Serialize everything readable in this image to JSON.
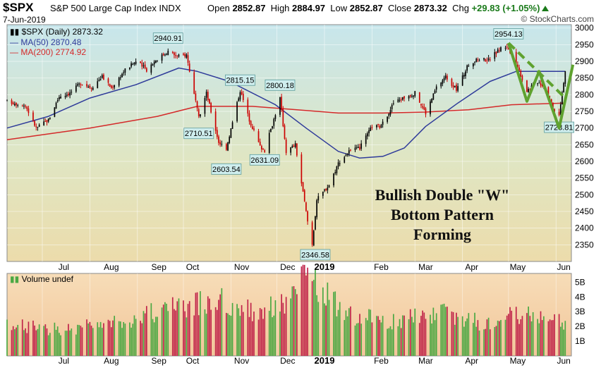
{
  "header": {
    "symbol": "$SPX",
    "description": "S&P 500 Large Cap Index  INDX",
    "date": "7-Jun-2019",
    "open_label": "Open",
    "open": "2852.87",
    "high_label": "High",
    "high": "2884.97",
    "low_label": "Low",
    "low": "2852.87",
    "close_label": "Close",
    "close": "2873.32",
    "chg_label": "Chg",
    "chg": "+29.83 (+1.05%)",
    "credit": "© StockCharts.com"
  },
  "legend": {
    "price": "$SPX (Daily) 2873.32",
    "ma50": "MA(50) 2870.48",
    "ma200": "MA(200) 2774.92",
    "volume": "Volume undef"
  },
  "annotation": {
    "line1": "Bullish Double \"W\"",
    "line2": "Bottom Pattern",
    "line3": "Forming"
  },
  "colors": {
    "up": "#000000",
    "down": "#cc0000",
    "ma50": "#2f3b9a",
    "ma200": "#d42a2a",
    "pattern": "#5fa22f",
    "vol_up": "#4aa843",
    "vol_down": "#c0244a",
    "callout_bg": "#cfeeee",
    "callout_border": "#5c9a9a"
  },
  "chart_data": {
    "type": "candlestick",
    "title": "$SPX S&P 500 Large Cap Index INDX",
    "x_axis_ticks": [
      "Jul",
      "Aug",
      "Sep",
      "Oct",
      "Nov",
      "Dec",
      "2019",
      "Feb",
      "Mar",
      "Apr",
      "May",
      "Jun"
    ],
    "y_axis_ticks": [
      2350,
      2400,
      2450,
      2500,
      2550,
      2600,
      2650,
      2700,
      2750,
      2800,
      2850,
      2900,
      2950,
      3000
    ],
    "ylim": [
      2300,
      3010
    ],
    "price_path": [
      [
        "2018-06-08",
        2780
      ],
      [
        "2018-06-13",
        2775
      ],
      [
        "2018-06-20",
        2768
      ],
      [
        "2018-06-27",
        2700
      ],
      [
        "2018-07-05",
        2725
      ],
      [
        "2018-07-12",
        2795
      ],
      [
        "2018-07-19",
        2805
      ],
      [
        "2018-07-26",
        2835
      ],
      [
        "2018-08-02",
        2822
      ],
      [
        "2018-08-09",
        2855
      ],
      [
        "2018-08-15",
        2820
      ],
      [
        "2018-08-24",
        2875
      ],
      [
        "2018-08-31",
        2900
      ],
      [
        "2018-09-07",
        2875
      ],
      [
        "2018-09-13",
        2905
      ],
      [
        "2018-09-21",
        2930
      ],
      [
        "2018-09-27",
        2915
      ],
      [
        "2018-10-03",
        2920
      ],
      [
        "2018-10-11",
        2730
      ],
      [
        "2018-10-16",
        2805
      ],
      [
        "2018-10-24",
        2658
      ],
      [
        "2018-10-29",
        2640
      ],
      [
        "2018-11-07",
        2813
      ],
      [
        "2018-11-13",
        2725
      ],
      [
        "2018-11-20",
        2645
      ],
      [
        "2018-11-23",
        2633
      ],
      [
        "2018-12-03",
        2790
      ],
      [
        "2018-12-07",
        2630
      ],
      [
        "2018-12-13",
        2650
      ],
      [
        "2018-12-21",
        2420
      ],
      [
        "2018-12-24",
        2351
      ],
      [
        "2018-12-27",
        2485
      ],
      [
        "2019-01-04",
        2530
      ],
      [
        "2019-01-10",
        2595
      ],
      [
        "2019-01-17",
        2630
      ],
      [
        "2019-01-24",
        2640
      ],
      [
        "2019-02-01",
        2705
      ],
      [
        "2019-02-07",
        2705
      ],
      [
        "2019-02-15",
        2775
      ],
      [
        "2019-02-22",
        2792
      ],
      [
        "2019-03-01",
        2805
      ],
      [
        "2019-03-08",
        2745
      ],
      [
        "2019-03-15",
        2822
      ],
      [
        "2019-03-21",
        2855
      ],
      [
        "2019-03-28",
        2815
      ],
      [
        "2019-04-05",
        2892
      ],
      [
        "2019-04-12",
        2907
      ],
      [
        "2019-04-18",
        2905
      ],
      [
        "2019-04-26",
        2940
      ],
      [
        "2019-04-30",
        2945
      ],
      [
        "2019-05-07",
        2884
      ],
      [
        "2019-05-13",
        2812
      ],
      [
        "2019-05-20",
        2840
      ],
      [
        "2019-05-24",
        2826
      ],
      [
        "2019-05-31",
        2752
      ],
      [
        "2019-06-03",
        2744
      ],
      [
        "2019-06-07",
        2873
      ]
    ],
    "ma50_path": [
      [
        "2018-06-08",
        2700
      ],
      [
        "2018-07-05",
        2735
      ],
      [
        "2018-08-01",
        2790
      ],
      [
        "2018-08-31",
        2830
      ],
      [
        "2018-09-28",
        2880
      ],
      [
        "2018-10-10",
        2870
      ],
      [
        "2018-10-31",
        2840
      ],
      [
        "2018-11-30",
        2770
      ],
      [
        "2018-12-20",
        2700
      ],
      [
        "2019-01-10",
        2630
      ],
      [
        "2019-01-24",
        2610
      ],
      [
        "2019-02-08",
        2615
      ],
      [
        "2019-02-22",
        2640
      ],
      [
        "2019-03-08",
        2705
      ],
      [
        "2019-03-29",
        2775
      ],
      [
        "2019-04-19",
        2840
      ],
      [
        "2019-05-06",
        2870
      ],
      [
        "2019-05-24",
        2870
      ],
      [
        "2019-06-07",
        2870
      ]
    ],
    "ma200_path": [
      [
        "2018-06-08",
        2665
      ],
      [
        "2018-08-01",
        2700
      ],
      [
        "2018-09-14",
        2735
      ],
      [
        "2018-10-10",
        2765
      ],
      [
        "2018-11-15",
        2765
      ],
      [
        "2018-12-14",
        2755
      ],
      [
        "2019-01-10",
        2745
      ],
      [
        "2019-02-08",
        2745
      ],
      [
        "2019-03-08",
        2748
      ],
      [
        "2019-04-05",
        2755
      ],
      [
        "2019-05-03",
        2770
      ],
      [
        "2019-06-07",
        2775
      ]
    ],
    "price_callouts": [
      {
        "label": "2940.91",
        "date": "2018-09-21",
        "value": 2940.91,
        "pos": "above"
      },
      {
        "label": "2710.51",
        "date": "2018-10-11",
        "value": 2710.51,
        "pos": "below"
      },
      {
        "label": "2815.15",
        "date": "2018-11-07",
        "value": 2815.15,
        "pos": "above"
      },
      {
        "label": "2603.54",
        "date": "2018-10-29",
        "value": 2603.54,
        "pos": "below"
      },
      {
        "label": "2800.18",
        "date": "2018-12-03",
        "value": 2800.18,
        "pos": "above"
      },
      {
        "label": "2631.09",
        "date": "2018-11-23",
        "value": 2631.09,
        "pos": "below"
      },
      {
        "label": "2346.58",
        "date": "2018-12-26",
        "value": 2346.58,
        "pos": "below"
      },
      {
        "label": "2954.13",
        "date": "2019-05-01",
        "value": 2954.13,
        "pos": "above"
      },
      {
        "label": "2728.81",
        "date": "2019-06-03",
        "value": 2728.81,
        "pos": "below"
      }
    ],
    "w_pattern": [
      [
        "2019-05-01",
        2955
      ],
      [
        "2019-05-13",
        2780
      ],
      [
        "2019-05-21",
        2870
      ],
      [
        "2019-06-03",
        2700
      ],
      [
        "2019-06-12",
        2890
      ]
    ],
    "w_dashed": [
      [
        "2019-05-01",
        2955
      ],
      [
        "2019-06-07",
        2790
      ]
    ],
    "volume_axis_ticks": [
      "1B",
      "2B",
      "3B",
      "4B",
      "5B"
    ],
    "volume_ylim": [
      0,
      5.4
    ],
    "volume_billions_sample": [
      [
        "2018-06-15",
        2.0
      ],
      [
        "2018-07-15",
        1.8
      ],
      [
        "2018-08-15",
        2.2
      ],
      [
        "2018-09-21",
        3.2
      ],
      [
        "2018-10-10",
        3.5
      ],
      [
        "2018-10-25",
        3.8
      ],
      [
        "2018-11-15",
        3.0
      ],
      [
        "2018-12-07",
        3.6
      ],
      [
        "2018-12-21",
        5.4
      ],
      [
        "2019-01-15",
        2.8
      ],
      [
        "2019-02-15",
        2.3
      ],
      [
        "2019-03-15",
        3.0
      ],
      [
        "2019-04-15",
        2.2
      ],
      [
        "2019-05-13",
        3.0
      ],
      [
        "2019-06-07",
        2.2
      ]
    ]
  }
}
